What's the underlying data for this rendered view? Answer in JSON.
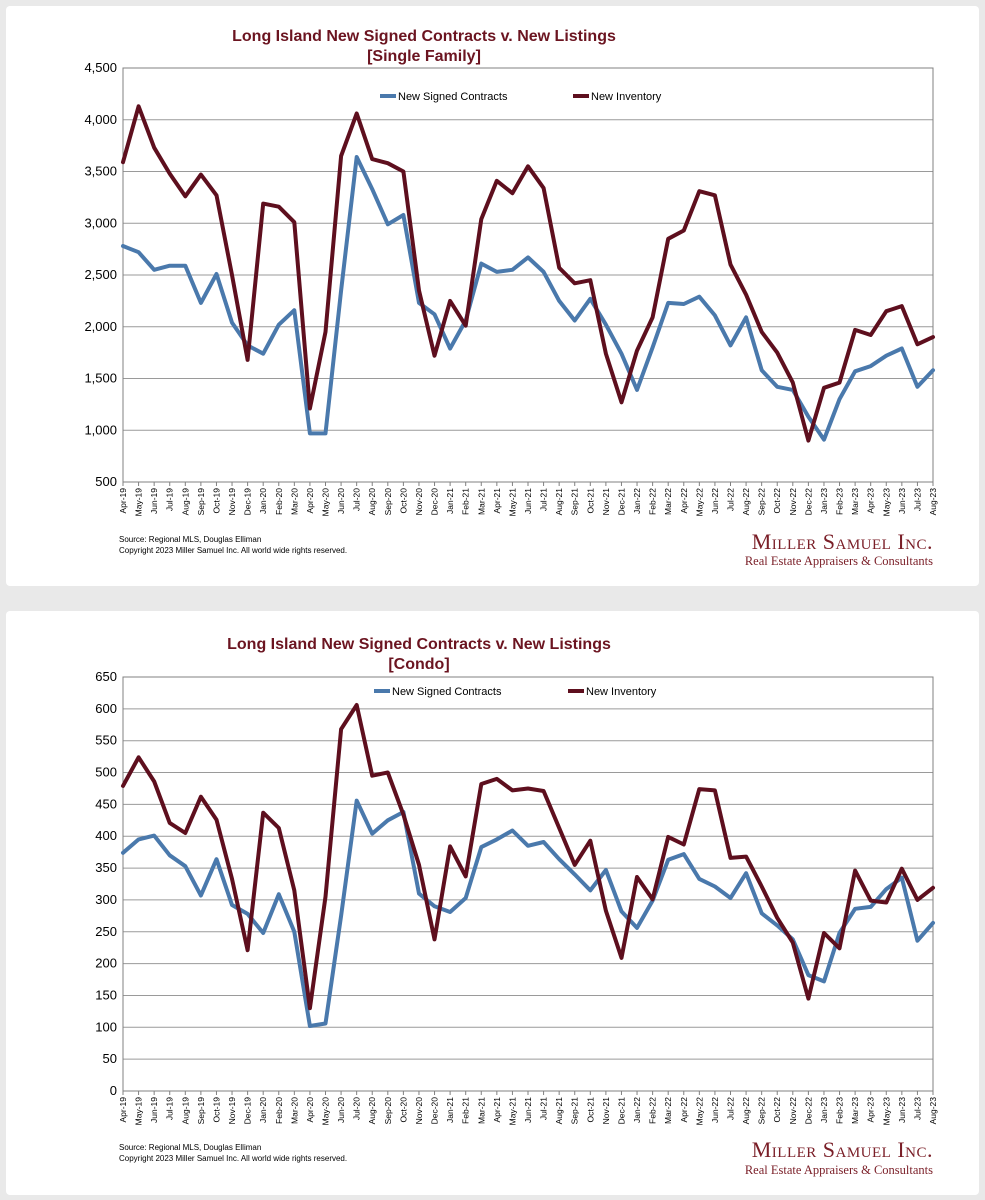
{
  "colors": {
    "contracts": "#4a79ac",
    "inventory": "#5e0f1e",
    "title": "#6b1420",
    "brand": "#7a1e27",
    "grid": "#9a9a9a"
  },
  "charts": [
    {
      "title_line1": "Long Island New Signed Contracts v. New Listings",
      "title_line2": "[Single Family]",
      "source_line1": "Source: Regional MLS, Douglas Elliman",
      "source_line2": "Copyright 2023 Miller Samuel Inc.  All world wide rights reserved.",
      "brand_name": "Miller Samuel Inc.",
      "brand_tagline": "Real Estate Appraisers & Consultants",
      "y_tick_labels": [
        "500",
        "1,000",
        "1,500",
        "2,000",
        "2,500",
        "3,000",
        "3,500",
        "4,000",
        "4,500"
      ]
    },
    {
      "title_line1": "Long Island New Signed Contracts v. New Listings",
      "title_line2": "[Condo]",
      "source_line1": "Source: Regional MLS, Douglas Elliman",
      "source_line2": "Copyright 2023 Miller Samuel Inc.  All world wide rights reserved.",
      "brand_name": "Miller Samuel Inc.",
      "brand_tagline": "Real Estate Appraisers & Consultants",
      "y_tick_labels": [
        "0",
        "50",
        "100",
        "150",
        "200",
        "250",
        "300",
        "350",
        "400",
        "450",
        "500",
        "550",
        "600",
        "650"
      ]
    }
  ],
  "chart_data": [
    {
      "type": "line",
      "title": "Long Island New Signed Contracts v. New Listings [Single Family]",
      "ylim": [
        500,
        4500
      ],
      "yticks": [
        500,
        1000,
        1500,
        2000,
        2500,
        3000,
        3500,
        4000,
        4500
      ],
      "grid": true,
      "legend_position": "top-center",
      "x": [
        "Apr-19",
        "May-19",
        "Jun-19",
        "Jul-19",
        "Aug-19",
        "Sep-19",
        "Oct-19",
        "Nov-19",
        "Dec-19",
        "Jan-20",
        "Feb-20",
        "Mar-20",
        "Apr-20",
        "May-20",
        "Jun-20",
        "Jul-20",
        "Aug-20",
        "Sep-20",
        "Oct-20",
        "Nov-20",
        "Dec-20",
        "Jan-21",
        "Feb-21",
        "Mar-21",
        "Apr-21",
        "May-21",
        "Jun-21",
        "Jul-21",
        "Aug-21",
        "Sep-21",
        "Oct-21",
        "Nov-21",
        "Dec-21",
        "Jan-22",
        "Feb-22",
        "Mar-22",
        "Apr-22",
        "May-22",
        "Jun-22",
        "Jul-22",
        "Aug-22",
        "Sep-22",
        "Oct-22",
        "Nov-22",
        "Dec-22",
        "Jan-23",
        "Feb-23",
        "Mar-23",
        "Apr-23",
        "May-23",
        "Jun-23",
        "Jul-23",
        "Aug-23"
      ],
      "series": [
        {
          "name": "New Signed Contracts",
          "values": [
            2780,
            2720,
            2550,
            2590,
            2590,
            2230,
            2510,
            2040,
            1820,
            1740,
            2020,
            2160,
            970,
            970,
            2350,
            3640,
            3330,
            2990,
            3080,
            2230,
            2120,
            1790,
            2060,
            2610,
            2530,
            2550,
            2670,
            2530,
            2250,
            2060,
            2270,
            2020,
            1740,
            1390,
            1800,
            2230,
            2220,
            2290,
            2110,
            1820,
            2090,
            1580,
            1420,
            1390,
            1130,
            910,
            1300,
            1570,
            1620,
            1720,
            1790,
            1420,
            1580
          ]
        },
        {
          "name": "New Inventory",
          "values": [
            3590,
            4130,
            3730,
            3480,
            3260,
            3470,
            3270,
            2500,
            1680,
            3190,
            3160,
            3010,
            1210,
            1950,
            3650,
            4060,
            3620,
            3580,
            3500,
            2350,
            1720,
            2250,
            2010,
            3040,
            3410,
            3290,
            3550,
            3340,
            2570,
            2420,
            2450,
            1740,
            1270,
            1770,
            2090,
            2850,
            2930,
            3310,
            3270,
            2600,
            2310,
            1950,
            1750,
            1460,
            900,
            1410,
            1460,
            1970,
            1920,
            2150,
            2200,
            1830,
            1900
          ]
        }
      ]
    },
    {
      "type": "line",
      "title": "Long Island New Signed Contracts v. New Listings [Condo]",
      "ylim": [
        0,
        650
      ],
      "yticks": [
        0,
        50,
        100,
        150,
        200,
        250,
        300,
        350,
        400,
        450,
        500,
        550,
        600,
        650
      ],
      "grid": true,
      "legend_position": "top-center",
      "x": [
        "Apr-19",
        "May-19",
        "Jun-19",
        "Jul-19",
        "Aug-19",
        "Sep-19",
        "Oct-19",
        "Nov-19",
        "Dec-19",
        "Jan-20",
        "Feb-20",
        "Mar-20",
        "Apr-20",
        "May-20",
        "Jun-20",
        "Jul-20",
        "Aug-20",
        "Sep-20",
        "Oct-20",
        "Nov-20",
        "Dec-20",
        "Jan-21",
        "Feb-21",
        "Mar-21",
        "Apr-21",
        "May-21",
        "Jun-21",
        "Jul-21",
        "Aug-21",
        "Sep-21",
        "Oct-21",
        "Nov-21",
        "Dec-21",
        "Jan-22",
        "Feb-22",
        "Mar-22",
        "Apr-22",
        "May-22",
        "Jun-22",
        "Jul-22",
        "Aug-22",
        "Sep-22",
        "Oct-22",
        "Nov-22",
        "Dec-22",
        "Jan-23",
        "Feb-23",
        "Mar-23",
        "Apr-23",
        "May-23",
        "Jun-23",
        "Jul-23",
        "Aug-23"
      ],
      "series": [
        {
          "name": "New Signed Contracts",
          "values": [
            374,
            395,
            401,
            370,
            353,
            307,
            364,
            292,
            278,
            248,
            309,
            250,
            102,
            106,
            275,
            456,
            404,
            425,
            438,
            310,
            290,
            281,
            303,
            383,
            395,
            409,
            385,
            391,
            364,
            340,
            315,
            347,
            282,
            256,
            299,
            363,
            372,
            333,
            321,
            303,
            342,
            279,
            260,
            238,
            182,
            172,
            248,
            286,
            289,
            317,
            335,
            236,
            264
          ]
        },
        {
          "name": "New Inventory",
          "values": [
            479,
            524,
            486,
            421,
            405,
            462,
            426,
            333,
            221,
            437,
            413,
            315,
            130,
            305,
            568,
            606,
            495,
            500,
            434,
            355,
            238,
            384,
            337,
            482,
            490,
            472,
            475,
            471,
            413,
            355,
            393,
            283,
            209,
            336,
            301,
            399,
            387,
            474,
            472,
            366,
            368,
            321,
            272,
            233,
            145,
            248,
            224,
            346,
            299,
            296,
            349,
            300,
            319
          ]
        }
      ]
    }
  ]
}
